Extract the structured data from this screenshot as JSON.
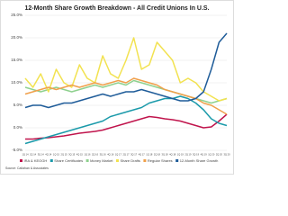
{
  "chart_data": {
    "type": "line",
    "title": "12-Month Share Growth Breakdown - All Credit Unions In U.S.",
    "source": "Source: Callahan & Associates",
    "categories": [
      "1Q 14",
      "2Q 14",
      "3Q 14",
      "4Q 14",
      "1Q 15",
      "2Q 15",
      "3Q 15",
      "4Q 15",
      "1Q 16",
      "2Q 16",
      "3Q 16",
      "4Q 16",
      "1Q 17",
      "2Q 17",
      "3Q 17",
      "4Q 17",
      "1Q 18",
      "2Q 18",
      "3Q 18",
      "4Q 18",
      "1Q 19",
      "2Q 19",
      "3Q 19",
      "4Q 19",
      "1Q 20",
      "2Q 20",
      "3Q 20"
    ],
    "ylim": [
      -5,
      25
    ],
    "yticks": [
      {
        "value": -5,
        "label": "-5.0%"
      },
      {
        "value": 0,
        "label": "0.0%"
      },
      {
        "value": 5,
        "label": "5.0%"
      },
      {
        "value": 10,
        "label": "10.0%"
      },
      {
        "value": 15,
        "label": "15.0%"
      },
      {
        "value": 20,
        "label": "20.0%"
      },
      {
        "value": 25,
        "label": "25.0%"
      }
    ],
    "grid": true,
    "series": [
      {
        "name": "IRA & KEOGH",
        "color": "#c0144c",
        "values": [
          -2.5,
          -2.5,
          -2.3,
          -2.2,
          -2.0,
          -1.8,
          -1.5,
          -1.2,
          -1.0,
          -0.8,
          -0.5,
          0,
          0.5,
          1.0,
          1.5,
          2.0,
          2.5,
          2.3,
          2.0,
          1.8,
          1.5,
          1.0,
          0.5,
          0,
          0.2,
          1.5,
          3.0
        ]
      },
      {
        "name": "Share Certificates",
        "color": "#1b9aaa",
        "values": [
          -3.5,
          -3,
          -2.5,
          -2,
          -1.5,
          -1,
          -0.5,
          0,
          0.5,
          1.0,
          1.5,
          2.5,
          3,
          3.5,
          4,
          4.5,
          5.5,
          6,
          6.5,
          6.5,
          7,
          6.5,
          5.5,
          4,
          2,
          1,
          0.5
        ]
      },
      {
        "name": "Money Market",
        "color": "#8fd18f",
        "values": [
          9,
          8.5,
          8,
          8.5,
          9,
          8.5,
          8,
          8.5,
          9,
          9.5,
          9,
          9.5,
          10,
          9.5,
          10.5,
          10,
          9.5,
          9,
          8.5,
          8,
          7.5,
          7,
          6.5,
          6,
          5.5,
          6,
          6.5
        ]
      },
      {
        "name": "Share Drafts",
        "color": "#f2e250",
        "values": [
          11,
          9,
          12,
          8,
          13,
          10,
          9,
          14,
          11,
          10,
          16,
          12,
          11,
          15,
          20,
          13,
          14,
          19,
          17,
          15,
          10,
          11,
          10,
          8,
          7,
          6,
          6.5
        ]
      },
      {
        "name": "Regular Shares",
        "color": "#f0a04b",
        "values": [
          7.5,
          8,
          8.5,
          9,
          8.5,
          9,
          9.5,
          9,
          9.5,
          10,
          9.5,
          10,
          10.5,
          10,
          11,
          10.5,
          10,
          9.5,
          8.5,
          8,
          7.5,
          7,
          6.5,
          5.5,
          5,
          4,
          3
        ]
      },
      {
        "name": "12-Month Share Growth",
        "color": "#1f5c99",
        "values": [
          4.5,
          5,
          5,
          4.5,
          5,
          5.5,
          5.5,
          6,
          6.5,
          7,
          7.5,
          7,
          7.5,
          8,
          8,
          8.5,
          8,
          7.5,
          7,
          6.5,
          6,
          6,
          6.5,
          8,
          13,
          19,
          21
        ]
      }
    ],
    "legend": "bottom"
  }
}
